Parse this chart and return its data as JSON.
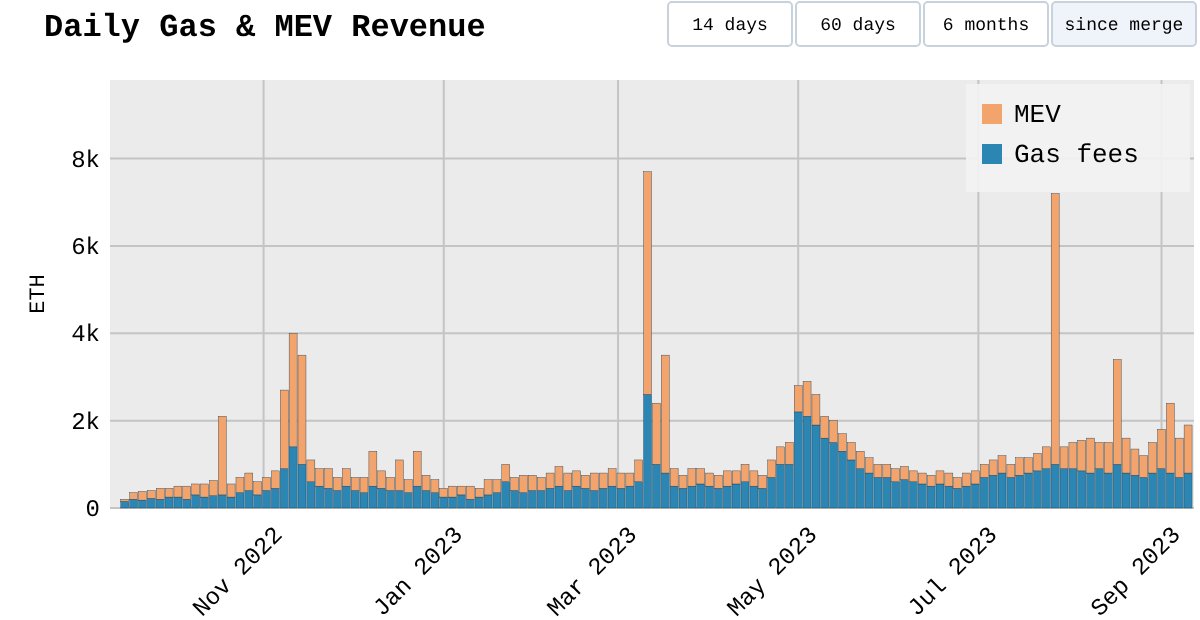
{
  "chart_data": {
    "type": "bar",
    "title": "Daily Gas & MEV Revenue",
    "ylabel": "ETH",
    "stacked": true,
    "grid": true,
    "legend": "top right",
    "annotations": [
      "14 days",
      "60 days",
      "6 months",
      "since merge"
    ],
    "x": [
      "2022-09-15",
      "2022-09-18",
      "2022-09-21",
      "2022-09-24",
      "2022-09-27",
      "2022-09-30",
      "2022-10-03",
      "2022-10-06",
      "2022-10-09",
      "2022-10-12",
      "2022-10-15",
      "2022-10-18",
      "2022-10-21",
      "2022-10-24",
      "2022-10-27",
      "2022-10-30",
      "2022-11-02",
      "2022-11-05",
      "2022-11-08",
      "2022-11-11",
      "2022-11-14",
      "2022-11-17",
      "2022-11-20",
      "2022-11-23",
      "2022-11-26",
      "2022-11-29",
      "2022-12-02",
      "2022-12-05",
      "2022-12-08",
      "2022-12-11",
      "2022-12-14",
      "2022-12-17",
      "2022-12-20",
      "2022-12-23",
      "2022-12-26",
      "2022-12-29",
      "2023-01-01",
      "2023-01-04",
      "2023-01-07",
      "2023-01-10",
      "2023-01-13",
      "2023-01-16",
      "2023-01-19",
      "2023-01-22",
      "2023-01-25",
      "2023-01-28",
      "2023-01-31",
      "2023-02-03",
      "2023-02-06",
      "2023-02-09",
      "2023-02-12",
      "2023-02-15",
      "2023-02-18",
      "2023-02-21",
      "2023-02-24",
      "2023-02-27",
      "2023-03-02",
      "2023-03-05",
      "2023-03-08",
      "2023-03-11",
      "2023-03-14",
      "2023-03-17",
      "2023-03-20",
      "2023-03-23",
      "2023-03-26",
      "2023-03-29",
      "2023-04-01",
      "2023-04-04",
      "2023-04-07",
      "2023-04-10",
      "2023-04-13",
      "2023-04-16",
      "2023-04-19",
      "2023-04-22",
      "2023-04-25",
      "2023-04-28",
      "2023-05-01",
      "2023-05-04",
      "2023-05-07",
      "2023-05-10",
      "2023-05-13",
      "2023-05-16",
      "2023-05-19",
      "2023-05-22",
      "2023-05-25",
      "2023-05-28",
      "2023-05-31",
      "2023-06-03",
      "2023-06-06",
      "2023-06-09",
      "2023-06-12",
      "2023-06-15",
      "2023-06-18",
      "2023-06-21",
      "2023-06-24",
      "2023-06-27",
      "2023-06-30",
      "2023-07-03",
      "2023-07-06",
      "2023-07-09",
      "2023-07-12",
      "2023-07-15",
      "2023-07-18",
      "2023-07-21",
      "2023-07-24",
      "2023-07-27",
      "2023-07-30",
      "2023-08-02",
      "2023-08-05",
      "2023-08-08",
      "2023-08-11",
      "2023-08-14",
      "2023-08-17",
      "2023-08-20",
      "2023-08-23",
      "2023-08-26",
      "2023-08-29",
      "2023-09-01",
      "2023-09-04",
      "2023-09-07",
      "2023-09-10"
    ],
    "series": [
      {
        "name": "Gas fees",
        "color": "#2b86b4",
        "values": [
          150,
          200,
          180,
          220,
          200,
          250,
          250,
          200,
          300,
          250,
          280,
          300,
          250,
          350,
          400,
          300,
          400,
          450,
          900,
          1400,
          1000,
          600,
          500,
          450,
          400,
          500,
          400,
          350,
          500,
          450,
          400,
          400,
          350,
          500,
          400,
          350,
          250,
          250,
          300,
          200,
          250,
          300,
          350,
          600,
          400,
          350,
          400,
          400,
          450,
          500,
          400,
          500,
          450,
          400,
          450,
          500,
          450,
          500,
          600,
          2600,
          1000,
          800,
          500,
          450,
          500,
          550,
          500,
          450,
          500,
          550,
          600,
          500,
          450,
          700,
          1000,
          1000,
          2200,
          2100,
          1900,
          1600,
          1500,
          1300,
          1100,
          900,
          800,
          700,
          700,
          600,
          650,
          600,
          550,
          500,
          550,
          500,
          450,
          500,
          550,
          700,
          750,
          800,
          700,
          750,
          800,
          850,
          900,
          1000,
          900,
          900,
          850,
          800,
          900,
          800,
          1000,
          800,
          750,
          700,
          800,
          900,
          800,
          700,
          800
        ]
      },
      {
        "name": "MEV",
        "color": "#f2a46c",
        "values": [
          50,
          150,
          200,
          180,
          250,
          200,
          250,
          300,
          250,
          300,
          350,
          1800,
          300,
          350,
          400,
          300,
          300,
          400,
          1800,
          2600,
          2500,
          500,
          400,
          450,
          300,
          400,
          300,
          350,
          800,
          400,
          300,
          700,
          300,
          800,
          350,
          300,
          200,
          250,
          200,
          300,
          200,
          350,
          300,
          400,
          300,
          400,
          350,
          300,
          350,
          450,
          400,
          350,
          300,
          400,
          350,
          400,
          350,
          300,
          500,
          5100,
          1400,
          2700,
          400,
          300,
          400,
          350,
          300,
          300,
          350,
          300,
          400,
          350,
          300,
          400,
          400,
          500,
          600,
          800,
          700,
          500,
          500,
          400,
          400,
          400,
          350,
          300,
          300,
          300,
          300,
          250,
          250,
          250,
          300,
          300,
          250,
          300,
          300,
          300,
          350,
          400,
          300,
          400,
          350,
          400,
          500,
          6200,
          500,
          600,
          700,
          800,
          600,
          700,
          2400,
          800,
          600,
          500,
          700,
          900,
          1600,
          900,
          1100
        ]
      }
    ],
    "xlim": [
      "2022-09-10",
      "2023-09-12"
    ],
    "xticks": [
      {
        "value": "2022-11-01",
        "label": "Nov 2022"
      },
      {
        "value": "2023-01-01",
        "label": "Jan 2023"
      },
      {
        "value": "2023-03-01",
        "label": "Mar 2023"
      },
      {
        "value": "2023-05-01",
        "label": "May 2023"
      },
      {
        "value": "2023-07-01",
        "label": "Jul 2023"
      },
      {
        "value": "2023-09-01",
        "label": "Sep 2023"
      }
    ],
    "ylim": [
      0,
      9800
    ],
    "yticks": [
      0,
      {
        "value": 2000,
        "label": "2k"
      },
      {
        "value": 4000,
        "label": "4k"
      },
      {
        "value": 6000,
        "label": "6k"
      },
      {
        "value": 8000,
        "label": "8k"
      }
    ]
  }
}
